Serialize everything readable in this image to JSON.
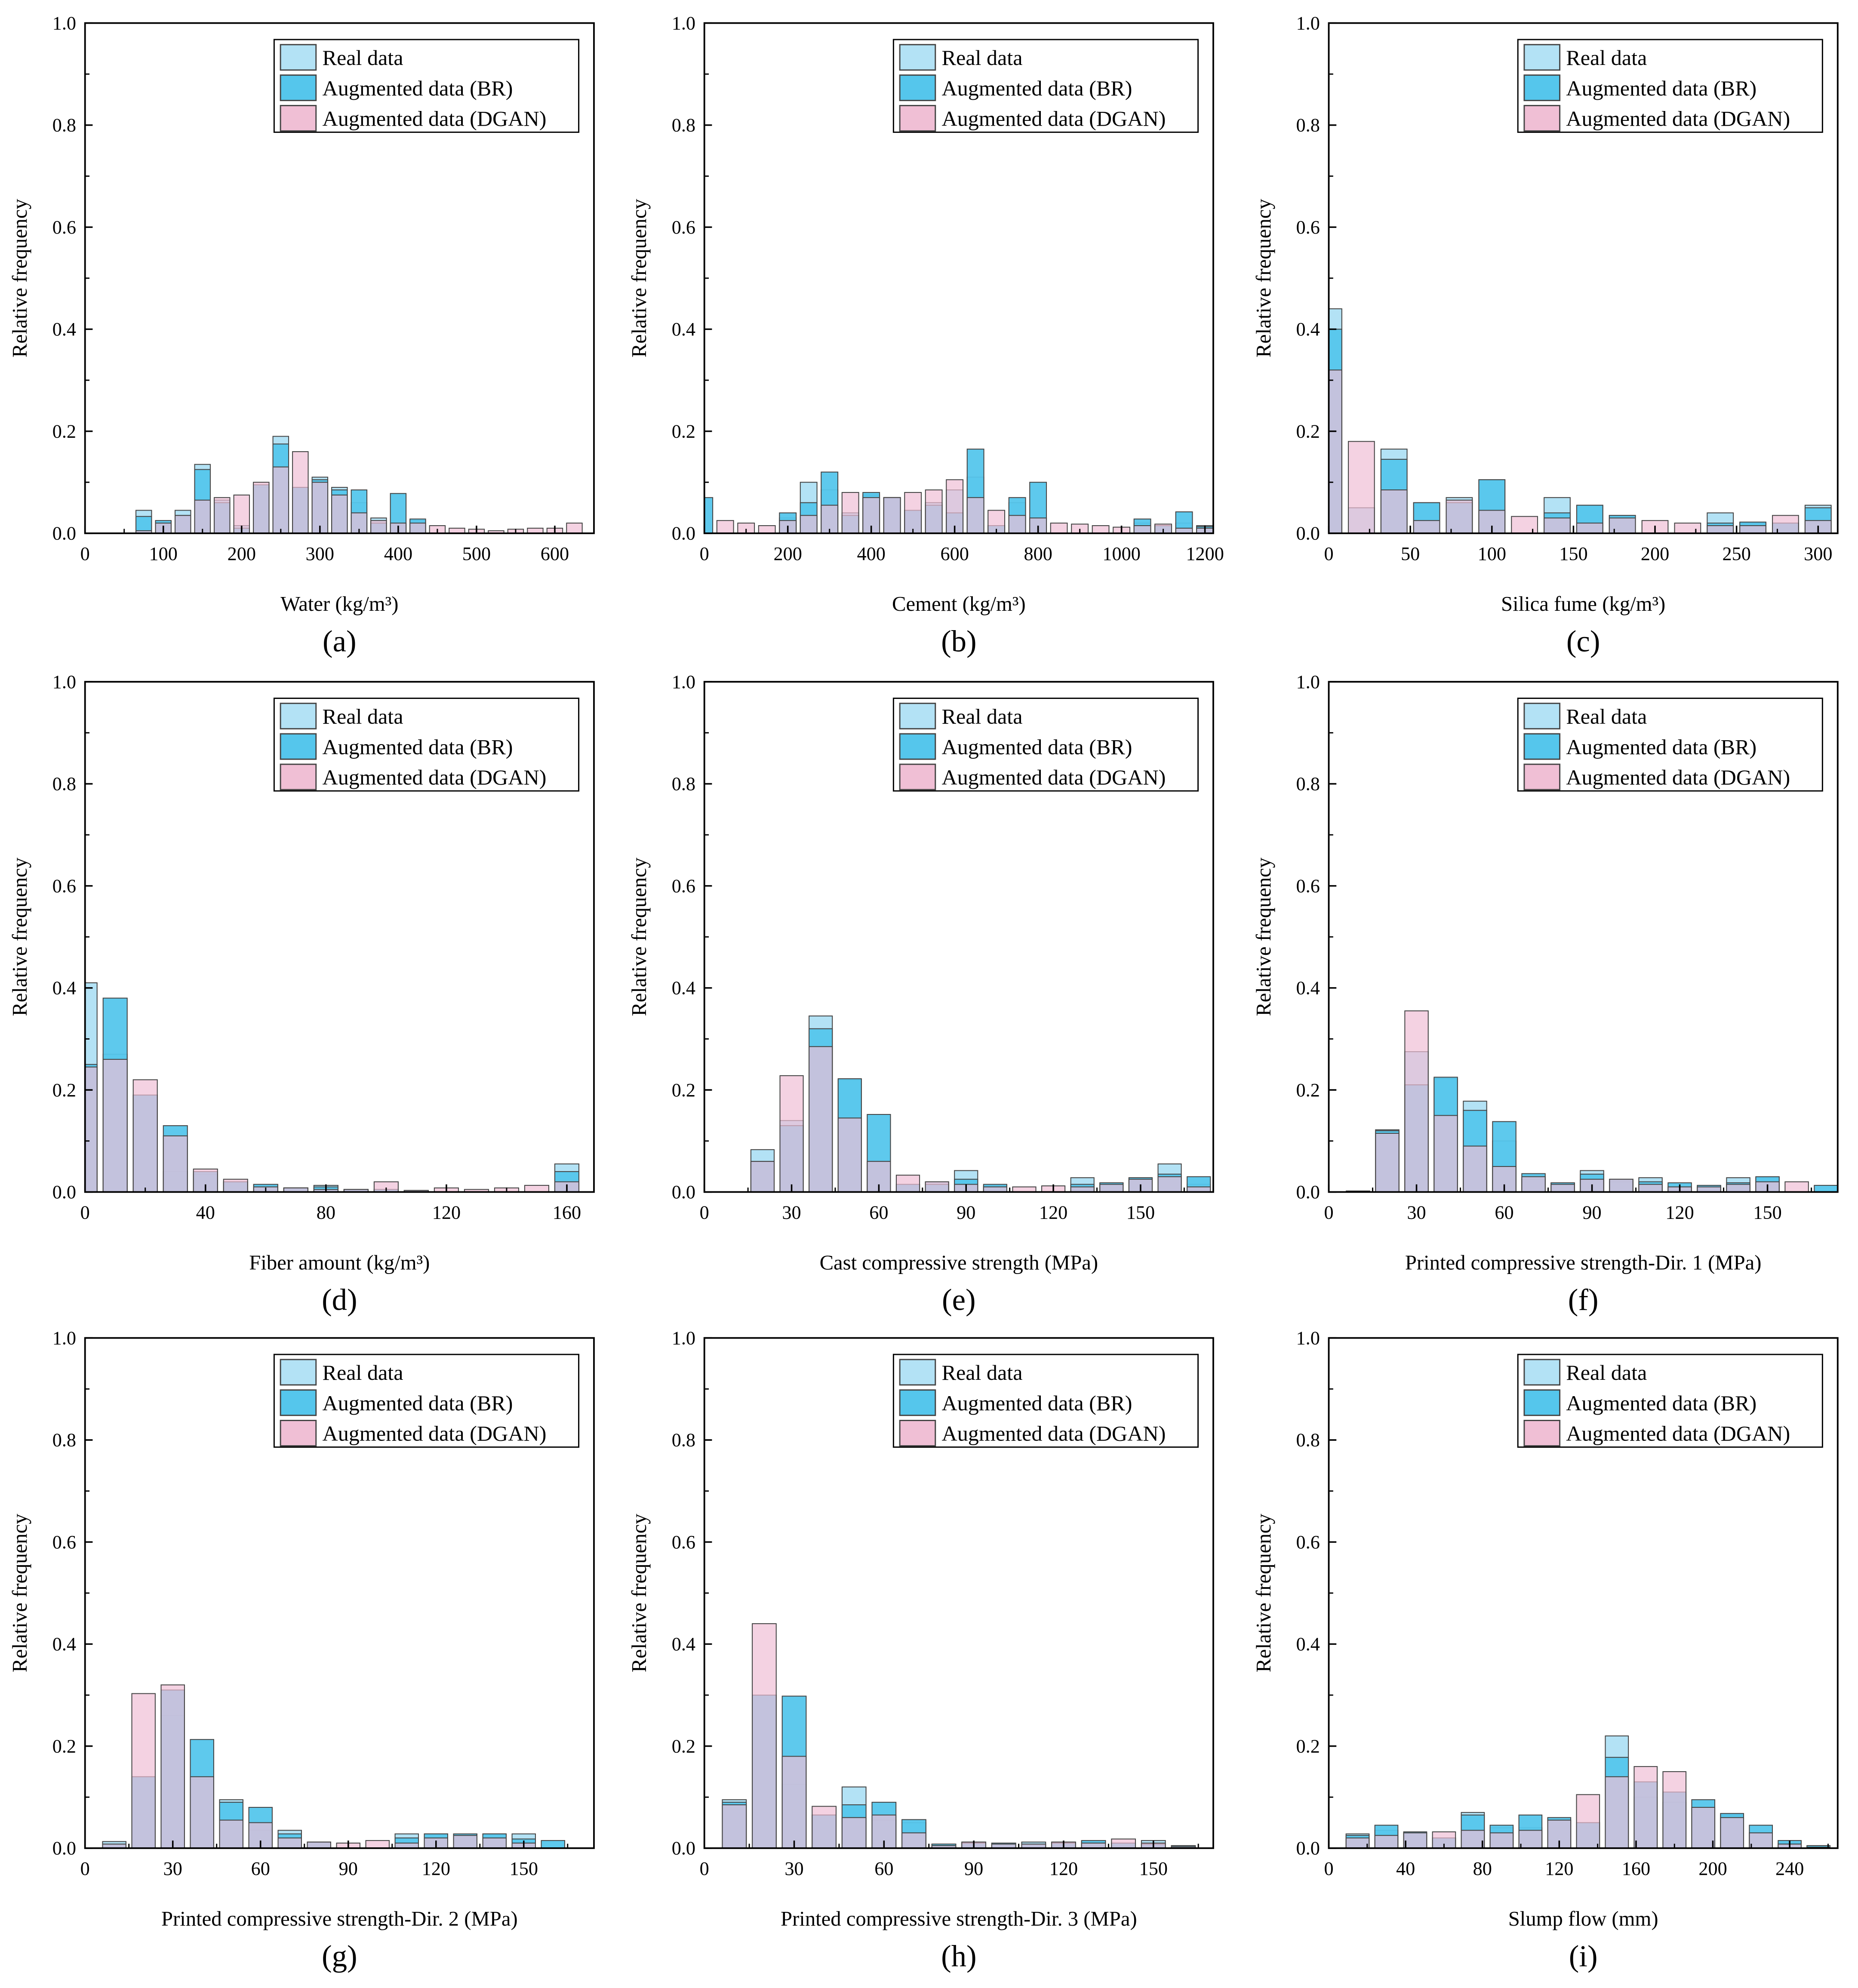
{
  "colors": {
    "real": "#b3e2f5",
    "br": "#55c6ec",
    "dgan": "#f0bfd5",
    "edge": "#444444"
  },
  "legend": [
    "Real data",
    "Augmented data (BR)",
    "Augmented data (DGAN)"
  ],
  "chart_data": [
    {
      "type": "bar",
      "panel": "(a)",
      "xlabel": "Water (kg/m³)",
      "ylabel": "Relative frequency",
      "xlim": [
        0,
        650
      ],
      "ylim": [
        0,
        1
      ],
      "xticks": [
        0,
        100,
        200,
        300,
        400,
        500,
        600
      ],
      "yticks": [
        0.0,
        0.2,
        0.4,
        0.6,
        0.8,
        1.0
      ],
      "bin": 25,
      "x": [
        75,
        100,
        125,
        150,
        175,
        200,
        225,
        250,
        275,
        300,
        325,
        350,
        375,
        400,
        425,
        450,
        475,
        500,
        525,
        550,
        575,
        600,
        625
      ],
      "series": [
        {
          "name": "Real data",
          "values": [
            0.045,
            0.02,
            0.045,
            0.135,
            0.065,
            0.015,
            0.09,
            0.19,
            0.09,
            0.11,
            0.09,
            0.06,
            0.03,
            0.02,
            0.025,
            0,
            0,
            0,
            0,
            0,
            0,
            0,
            0
          ]
        },
        {
          "name": "Augmented data (BR)",
          "values": [
            0.033,
            0.025,
            0.035,
            0.125,
            0.06,
            0.01,
            0.095,
            0.175,
            0.09,
            0.105,
            0.085,
            0.085,
            0.02,
            0.078,
            0.028,
            0,
            0,
            0,
            0,
            0,
            0,
            0,
            0
          ]
        },
        {
          "name": "Augmented data (DGAN)",
          "values": [
            0.005,
            0.02,
            0.035,
            0.065,
            0.07,
            0.075,
            0.1,
            0.13,
            0.16,
            0.1,
            0.075,
            0.04,
            0.025,
            0.02,
            0.02,
            0.015,
            0.01,
            0.008,
            0.005,
            0.008,
            0.01,
            0.01,
            0.02
          ]
        }
      ]
    },
    {
      "type": "bar",
      "panel": "(b)",
      "xlabel": "Cement (kg/m³)",
      "ylabel": "Relative frequency",
      "xlim": [
        0,
        1220
      ],
      "ylim": [
        0,
        1
      ],
      "xticks": [
        0,
        200,
        400,
        600,
        800,
        1000,
        1200
      ],
      "yticks": [
        0.0,
        0.2,
        0.4,
        0.6,
        0.8,
        1.0
      ],
      "bin": 50,
      "x": [
        0,
        50,
        100,
        150,
        200,
        250,
        300,
        350,
        400,
        450,
        500,
        550,
        600,
        650,
        700,
        750,
        800,
        850,
        900,
        950,
        1000,
        1050,
        1100,
        1150,
        1200
      ],
      "series": [
        {
          "name": "Real data",
          "values": [
            0,
            0,
            0,
            0,
            0.03,
            0.1,
            0.085,
            0.04,
            0.075,
            0.07,
            0.045,
            0.06,
            0.085,
            0.11,
            0.015,
            0.06,
            0.03,
            0,
            0,
            0,
            0,
            0.02,
            0.015,
            0.02,
            0.015
          ]
        },
        {
          "name": "Augmented data (BR)",
          "values": [
            0.07,
            0,
            0,
            0,
            0.04,
            0.06,
            0.12,
            0.035,
            0.08,
            0.07,
            0.045,
            0.055,
            0.04,
            0.165,
            0.015,
            0.07,
            0.1,
            0,
            0,
            0,
            0,
            0.028,
            0.015,
            0.042,
            0.013
          ]
        },
        {
          "name": "Augmented data (DGAN)",
          "values": [
            0,
            0.025,
            0.02,
            0.015,
            0.025,
            0.035,
            0.055,
            0.08,
            0.07,
            0.07,
            0.08,
            0.085,
            0.105,
            0.07,
            0.045,
            0.035,
            0.03,
            0.02,
            0.018,
            0.015,
            0.012,
            0.015,
            0.018,
            0.01,
            0.01
          ]
        }
      ]
    },
    {
      "type": "bar",
      "panel": "(c)",
      "xlabel": "Silica fume (kg/m³)",
      "ylabel": "Relative frequency",
      "xlim": [
        0,
        312
      ],
      "ylim": [
        0,
        1
      ],
      "xticks": [
        0,
        50,
        100,
        150,
        200,
        250,
        300
      ],
      "yticks": [
        0.0,
        0.2,
        0.4,
        0.6,
        0.8,
        1.0
      ],
      "bin": 20,
      "x": [
        0,
        20,
        40,
        60,
        80,
        100,
        120,
        140,
        160,
        180,
        200,
        220,
        240,
        260,
        280,
        300
      ],
      "series": [
        {
          "name": "Real data",
          "values": [
            0.44,
            0.05,
            0.165,
            0.06,
            0.07,
            0.105,
            0,
            0.07,
            0.055,
            0.035,
            0,
            0,
            0.04,
            0.02,
            0.02,
            0.055
          ]
        },
        {
          "name": "Augmented data (BR)",
          "values": [
            0.4,
            0,
            0.145,
            0.06,
            0.06,
            0.105,
            0,
            0.04,
            0.055,
            0.035,
            0,
            0,
            0.02,
            0.022,
            0.02,
            0.05
          ]
        },
        {
          "name": "Augmented data (DGAN)",
          "values": [
            0.32,
            0.18,
            0.085,
            0.025,
            0.065,
            0.045,
            0.033,
            0.03,
            0.02,
            0.03,
            0.025,
            0.02,
            0.015,
            0.015,
            0.035,
            0.025
          ]
        }
      ]
    },
    {
      "type": "bar",
      "panel": "(d)",
      "xlabel": "Fiber amount (kg/m³)",
      "ylabel": "Relative frequency",
      "xlim": [
        0,
        169
      ],
      "ylim": [
        0,
        1
      ],
      "xticks": [
        0,
        40,
        80,
        120,
        160
      ],
      "yticks": [
        0.0,
        0.2,
        0.4,
        0.6,
        0.8,
        1.0
      ],
      "bin": 10,
      "x": [
        0,
        10,
        20,
        30,
        40,
        50,
        60,
        70,
        80,
        90,
        100,
        110,
        120,
        130,
        140,
        150,
        160
      ],
      "series": [
        {
          "name": "Real data",
          "values": [
            0.41,
            0.27,
            0.19,
            0.04,
            0.035,
            0.02,
            0.015,
            0.008,
            0.013,
            0.005,
            0.005,
            0.003,
            0,
            0,
            0,
            0,
            0.055
          ]
        },
        {
          "name": "Augmented data (BR)",
          "values": [
            0.25,
            0.38,
            0.19,
            0.13,
            0.04,
            0.02,
            0.015,
            0.008,
            0.01,
            0.005,
            0.005,
            0.003,
            0,
            0,
            0,
            0,
            0.04
          ]
        },
        {
          "name": "Augmented data (DGAN)",
          "values": [
            0.245,
            0.26,
            0.22,
            0.11,
            0.045,
            0.025,
            0.01,
            0.008,
            0.005,
            0.005,
            0.02,
            0.003,
            0.008,
            0.005,
            0.008,
            0.013,
            0.02
          ]
        }
      ]
    },
    {
      "type": "bar",
      "panel": "(e)",
      "xlabel": "Cast compressive strength (MPa)",
      "ylabel": "Relative frequency",
      "xlim": [
        0,
        175
      ],
      "ylim": [
        0,
        1
      ],
      "xticks": [
        0,
        30,
        60,
        90,
        120,
        150
      ],
      "yticks": [
        0.0,
        0.2,
        0.4,
        0.6,
        0.8,
        1.0
      ],
      "bin": 10,
      "x": [
        20,
        30,
        40,
        50,
        60,
        70,
        80,
        90,
        100,
        110,
        120,
        130,
        140,
        150,
        160,
        170
      ],
      "series": [
        {
          "name": "Real data",
          "values": [
            0.083,
            0.14,
            0.345,
            0.22,
            0.06,
            0.015,
            0.02,
            0.042,
            0.012,
            0,
            0,
            0.028,
            0.018,
            0.028,
            0.055,
            0.015
          ]
        },
        {
          "name": "Augmented data (BR)",
          "values": [
            0.06,
            0.13,
            0.32,
            0.222,
            0.152,
            0.015,
            0.015,
            0.025,
            0.015,
            0,
            0,
            0.015,
            0.018,
            0.028,
            0.035,
            0.03
          ]
        },
        {
          "name": "Augmented data (DGAN)",
          "values": [
            0.06,
            0.228,
            0.285,
            0.145,
            0.06,
            0.033,
            0.02,
            0.015,
            0.01,
            0.01,
            0.012,
            0.01,
            0.015,
            0.025,
            0.03,
            0.01
          ]
        }
      ]
    },
    {
      "type": "bar",
      "panel": "(f)",
      "xlabel": "Printed compressive strength-Dir. 1 (MPa)",
      "ylabel": "Relative frequency",
      "xlim": [
        0,
        174
      ],
      "ylim": [
        0,
        1
      ],
      "xticks": [
        0,
        30,
        60,
        90,
        120,
        150
      ],
      "yticks": [
        0.0,
        0.2,
        0.4,
        0.6,
        0.8,
        1.0
      ],
      "bin": 10,
      "x": [
        10,
        20,
        30,
        40,
        50,
        60,
        70,
        80,
        90,
        100,
        110,
        120,
        130,
        140,
        150,
        160,
        170
      ],
      "series": [
        {
          "name": "Real data",
          "values": [
            0,
            0.122,
            0.275,
            0.222,
            0.178,
            0.1,
            0.025,
            0.018,
            0.042,
            0.02,
            0.028,
            0.01,
            0.01,
            0.028,
            0.028,
            0,
            0
          ]
        },
        {
          "name": "Augmented data (BR)",
          "values": [
            0.002,
            0.12,
            0.21,
            0.225,
            0.16,
            0.138,
            0.036,
            0.018,
            0.035,
            0.025,
            0.02,
            0.018,
            0.013,
            0.018,
            0.03,
            0,
            0.013
          ]
        },
        {
          "name": "Augmented data (DGAN)",
          "values": [
            0.002,
            0.115,
            0.355,
            0.15,
            0.09,
            0.05,
            0.03,
            0.015,
            0.025,
            0.025,
            0.015,
            0.01,
            0.01,
            0.015,
            0.02,
            0.02,
            0
          ]
        }
      ]
    },
    {
      "type": "bar",
      "panel": "(g)",
      "xlabel": "Printed compressive strength-Dir. 2 (MPa)",
      "ylabel": "Relative frequency",
      "xlim": [
        0,
        174
      ],
      "ylim": [
        0,
        1
      ],
      "xticks": [
        0,
        30,
        60,
        90,
        120,
        150
      ],
      "yticks": [
        0.0,
        0.2,
        0.4,
        0.6,
        0.8,
        1.0
      ],
      "bin": 10,
      "x": [
        10,
        20,
        30,
        40,
        50,
        60,
        70,
        80,
        90,
        100,
        110,
        120,
        130,
        140,
        150,
        160
      ],
      "series": [
        {
          "name": "Real data",
          "values": [
            0.013,
            0.14,
            0.26,
            0.135,
            0.095,
            0.035,
            0.035,
            0.012,
            0,
            0,
            0.028,
            0.028,
            0.025,
            0.028,
            0.028,
            0
          ]
        },
        {
          "name": "Augmented data (BR)",
          "values": [
            0.008,
            0.14,
            0.31,
            0.213,
            0.09,
            0.08,
            0.028,
            0.012,
            0,
            0,
            0.02,
            0.028,
            0.028,
            0.028,
            0.018,
            0.015
          ]
        },
        {
          "name": "Augmented data (DGAN)",
          "values": [
            0.008,
            0.303,
            0.32,
            0.14,
            0.055,
            0.05,
            0.02,
            0.012,
            0.01,
            0.015,
            0.01,
            0.02,
            0.025,
            0.02,
            0.01,
            0
          ]
        }
      ]
    },
    {
      "type": "bar",
      "panel": "(h)",
      "xlabel": "Printed compressive strength-Dir. 3 (MPa)",
      "ylabel": "Relative frequency",
      "xlim": [
        0,
        170
      ],
      "ylim": [
        0,
        1
      ],
      "xticks": [
        0,
        30,
        60,
        90,
        120,
        150
      ],
      "yticks": [
        0.0,
        0.2,
        0.4,
        0.6,
        0.8,
        1.0
      ],
      "bin": 10,
      "x": [
        10,
        20,
        30,
        40,
        50,
        60,
        70,
        80,
        90,
        100,
        110,
        120,
        130,
        140,
        150,
        160
      ],
      "series": [
        {
          "name": "Real data",
          "values": [
            0.095,
            0.3,
            0.125,
            0.065,
            0.12,
            0.055,
            0.05,
            0.008,
            0.012,
            0.01,
            0.012,
            0.012,
            0.012,
            0.01,
            0.015,
            0.005
          ]
        },
        {
          "name": "Augmented data (BR)",
          "values": [
            0.09,
            0.3,
            0.298,
            0.065,
            0.085,
            0.09,
            0.056,
            0.008,
            0.01,
            0.01,
            0.008,
            0.01,
            0.015,
            0.01,
            0.008,
            0.005
          ]
        },
        {
          "name": "Augmented data (DGAN)",
          "values": [
            0.085,
            0.44,
            0.18,
            0.082,
            0.06,
            0.065,
            0.03,
            0.005,
            0.012,
            0.008,
            0.008,
            0.012,
            0.01,
            0.018,
            0.01,
            0.003
          ]
        }
      ]
    },
    {
      "type": "bar",
      "panel": "(i)",
      "xlabel": "Slump flow (mm)",
      "ylabel": "Relative frequency",
      "xlim": [
        0,
        265
      ],
      "ylim": [
        0,
        1
      ],
      "xticks": [
        0,
        40,
        80,
        120,
        160,
        200,
        240
      ],
      "yticks": [
        0.0,
        0.2,
        0.4,
        0.6,
        0.8,
        1.0
      ],
      "bin": 15,
      "x": [
        15,
        30,
        45,
        60,
        75,
        90,
        105,
        120,
        135,
        150,
        165,
        180,
        195,
        210,
        225,
        240,
        255
      ],
      "series": [
        {
          "name": "Real data",
          "values": [
            0.028,
            0.035,
            0.03,
            0.02,
            0.07,
            0.04,
            0.04,
            0.055,
            0.05,
            0.22,
            0.1,
            0.09,
            0.08,
            0.065,
            0.03,
            0.01,
            0.005
          ]
        },
        {
          "name": "Augmented data (BR)",
          "values": [
            0.025,
            0.045,
            0.032,
            0.02,
            0.065,
            0.045,
            0.065,
            0.06,
            0.05,
            0.178,
            0.13,
            0.11,
            0.095,
            0.068,
            0.045,
            0.015,
            0.005
          ]
        },
        {
          "name": "Augmented data (DGAN)",
          "values": [
            0.02,
            0.025,
            0.03,
            0.032,
            0.035,
            0.03,
            0.035,
            0.055,
            0.105,
            0.14,
            0.16,
            0.15,
            0.08,
            0.06,
            0.03,
            0.008,
            0.002
          ]
        }
      ]
    }
  ]
}
